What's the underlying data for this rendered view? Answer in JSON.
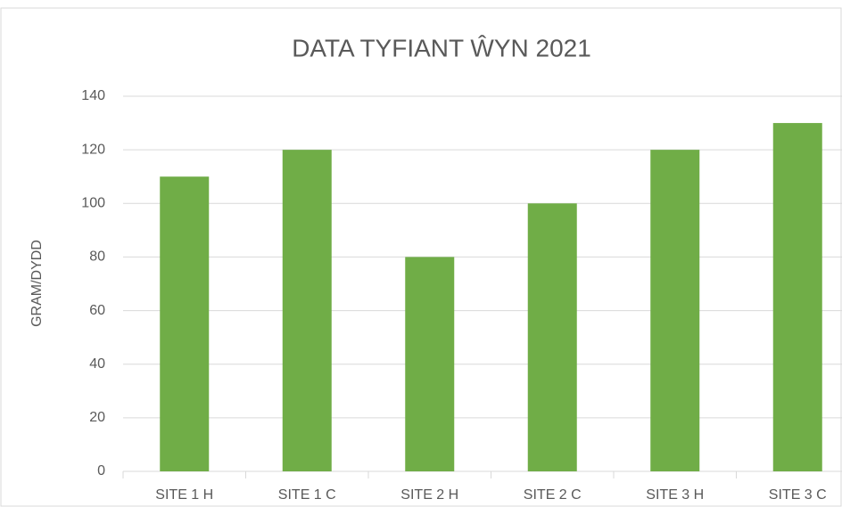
{
  "chart_data": {
    "type": "bar",
    "title": "DATA TYFIANT ŴYN 2021",
    "y_label": "GRAM/DYDD",
    "categories": [
      "SITE 1 H",
      "SITE 1 C",
      "SITE 2 H",
      "SITE 2 C",
      "SITE 3 H",
      "SITE 3 C"
    ],
    "values": [
      110,
      120,
      80,
      100,
      120,
      130
    ],
    "color": "#70ad47",
    "ylim": [
      0,
      140
    ],
    "yticks": [
      0,
      20,
      40,
      60,
      80,
      100,
      120,
      140
    ],
    "grid": true
  }
}
